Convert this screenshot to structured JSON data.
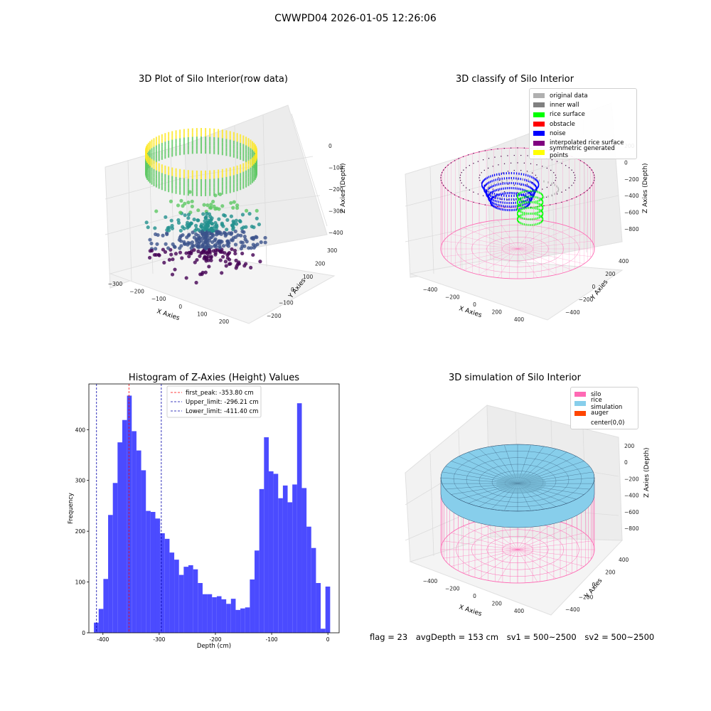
{
  "figure": {
    "suptitle": "CWWPD04 2026-01-05 12:26:06"
  },
  "colors": {
    "silo": "#ff69b4",
    "hist_bar": "#4b4bff",
    "peak_line": "#ff0000",
    "limit_line": "#0000aa",
    "rice_surface_top": "#87ceeb",
    "rice_edge": "#2f4f6f"
  },
  "panels": {
    "raw": {
      "title": "3D Plot of Silo Interior(row data)",
      "xlabel": "X Axies",
      "ylabel": "Y Axies",
      "zlabel": "Z Axies (Depth)",
      "xticks": [
        "−300",
        "−200",
        "−100",
        "0",
        "100",
        "200"
      ],
      "yticks": [
        "−200",
        "−100",
        "0",
        "100",
        "200",
        "300"
      ],
      "zticks": [
        "−400",
        "−300",
        "−200",
        "−100",
        "0"
      ]
    },
    "classify": {
      "title": "3D classify of Silo Interior",
      "xlabel": "X Axies",
      "ylabel": "Y Axies",
      "zlabel": "Z Axies (Depth)",
      "xticks": [
        "−400",
        "−200",
        "0",
        "200",
        "400"
      ],
      "yticks": [
        "−400",
        "−200",
        "0",
        "200",
        "400"
      ],
      "zticks": [
        "−800",
        "−600",
        "−400",
        "−200",
        "0",
        "200"
      ],
      "legend": [
        {
          "label": "original data",
          "color": "#b0b0b0"
        },
        {
          "label": "inner wall",
          "color": "#808080"
        },
        {
          "label": "rice surface",
          "color": "#00ff00"
        },
        {
          "label": "obstacle",
          "color": "#ff0000"
        },
        {
          "label": "noise",
          "color": "#0000ff"
        },
        {
          "label": "interpolated rice surface",
          "color": "#800080"
        },
        {
          "label": "symmetric generated points",
          "color": "#ffff00"
        }
      ]
    },
    "simulation": {
      "title": "3D simulation of Silo Interior",
      "xlabel": "X Axies",
      "ylabel": "Y Axies",
      "zlabel": "Z Axies (Depth)",
      "xticks": [
        "−400",
        "−200",
        "0",
        "200",
        "400"
      ],
      "yticks": [
        "−400",
        "−200",
        "0",
        "200",
        "400"
      ],
      "zticks": [
        "−800",
        "−600",
        "−400",
        "−200",
        "0",
        "200"
      ],
      "legend": [
        {
          "label": "silo",
          "color": "#ff69b4"
        },
        {
          "label": "rice simulation",
          "color": "#87ceeb"
        },
        {
          "label": "auger",
          "color": "#ff4500"
        },
        {
          "label": "center(0,0)",
          "color": "#ffffff"
        }
      ]
    }
  },
  "chart_data": [
    {
      "type": "bar",
      "title": "Histogram of Z-Axies (Height) Values",
      "xlabel": "Depth (cm)",
      "ylabel": "Frequency",
      "xlim": [
        -425,
        20
      ],
      "ylim": [
        0,
        490
      ],
      "xticks": [
        -400,
        -300,
        -200,
        -100,
        0
      ],
      "yticks": [
        0,
        100,
        200,
        300,
        400
      ],
      "bin_start": -416,
      "bin_width": 8.4,
      "values": [
        20,
        47,
        106,
        232,
        295,
        375,
        419,
        467,
        397,
        359,
        320,
        240,
        238,
        225,
        196,
        185,
        158,
        144,
        114,
        130,
        133,
        125,
        98,
        76,
        76,
        70,
        72,
        66,
        57,
        67,
        45,
        48,
        50,
        105,
        162,
        283,
        385,
        318,
        313,
        265,
        290,
        257,
        292,
        452,
        285,
        209,
        167,
        98,
        8,
        91
      ],
      "vlines": [
        {
          "label": "first_peak: -353.80 cm",
          "x": -353.8,
          "color": "#ff0000"
        },
        {
          "label": "Upper_limit: -296.21 cm",
          "x": -296.21,
          "color": "#0000aa"
        },
        {
          "label": "Lower_limit: -411.40 cm",
          "x": -411.4,
          "color": "#0000aa"
        }
      ],
      "legend_position": "top-center"
    }
  ],
  "footer": {
    "flag": "flag = 23",
    "avg_depth": "avgDepth = 153 cm",
    "sv1": "sv1 = 500~2500",
    "sv2": "sv2 = 500~2500"
  }
}
